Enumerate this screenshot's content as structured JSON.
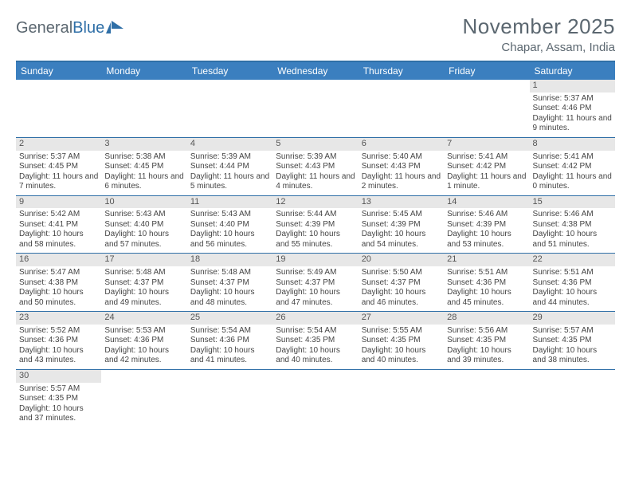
{
  "logo": {
    "text1": "General",
    "text2": "Blue"
  },
  "title": "November 2025",
  "location": "Chapar, Assam, India",
  "colors": {
    "header_bg": "#3b7fbf",
    "rule": "#2f6fa7",
    "daynum_bg": "#e7e7e7",
    "text_muted": "#5b6770"
  },
  "days_of_week": [
    "Sunday",
    "Monday",
    "Tuesday",
    "Wednesday",
    "Thursday",
    "Friday",
    "Saturday"
  ],
  "weeks": [
    [
      {
        "n": "",
        "sr": "",
        "ss": "",
        "dl": ""
      },
      {
        "n": "",
        "sr": "",
        "ss": "",
        "dl": ""
      },
      {
        "n": "",
        "sr": "",
        "ss": "",
        "dl": ""
      },
      {
        "n": "",
        "sr": "",
        "ss": "",
        "dl": ""
      },
      {
        "n": "",
        "sr": "",
        "ss": "",
        "dl": ""
      },
      {
        "n": "",
        "sr": "",
        "ss": "",
        "dl": ""
      },
      {
        "n": "1",
        "sr": "Sunrise: 5:37 AM",
        "ss": "Sunset: 4:46 PM",
        "dl": "Daylight: 11 hours and 9 minutes."
      }
    ],
    [
      {
        "n": "2",
        "sr": "Sunrise: 5:37 AM",
        "ss": "Sunset: 4:45 PM",
        "dl": "Daylight: 11 hours and 7 minutes."
      },
      {
        "n": "3",
        "sr": "Sunrise: 5:38 AM",
        "ss": "Sunset: 4:45 PM",
        "dl": "Daylight: 11 hours and 6 minutes."
      },
      {
        "n": "4",
        "sr": "Sunrise: 5:39 AM",
        "ss": "Sunset: 4:44 PM",
        "dl": "Daylight: 11 hours and 5 minutes."
      },
      {
        "n": "5",
        "sr": "Sunrise: 5:39 AM",
        "ss": "Sunset: 4:43 PM",
        "dl": "Daylight: 11 hours and 4 minutes."
      },
      {
        "n": "6",
        "sr": "Sunrise: 5:40 AM",
        "ss": "Sunset: 4:43 PM",
        "dl": "Daylight: 11 hours and 2 minutes."
      },
      {
        "n": "7",
        "sr": "Sunrise: 5:41 AM",
        "ss": "Sunset: 4:42 PM",
        "dl": "Daylight: 11 hours and 1 minute."
      },
      {
        "n": "8",
        "sr": "Sunrise: 5:41 AM",
        "ss": "Sunset: 4:42 PM",
        "dl": "Daylight: 11 hours and 0 minutes."
      }
    ],
    [
      {
        "n": "9",
        "sr": "Sunrise: 5:42 AM",
        "ss": "Sunset: 4:41 PM",
        "dl": "Daylight: 10 hours and 58 minutes."
      },
      {
        "n": "10",
        "sr": "Sunrise: 5:43 AM",
        "ss": "Sunset: 4:40 PM",
        "dl": "Daylight: 10 hours and 57 minutes."
      },
      {
        "n": "11",
        "sr": "Sunrise: 5:43 AM",
        "ss": "Sunset: 4:40 PM",
        "dl": "Daylight: 10 hours and 56 minutes."
      },
      {
        "n": "12",
        "sr": "Sunrise: 5:44 AM",
        "ss": "Sunset: 4:39 PM",
        "dl": "Daylight: 10 hours and 55 minutes."
      },
      {
        "n": "13",
        "sr": "Sunrise: 5:45 AM",
        "ss": "Sunset: 4:39 PM",
        "dl": "Daylight: 10 hours and 54 minutes."
      },
      {
        "n": "14",
        "sr": "Sunrise: 5:46 AM",
        "ss": "Sunset: 4:39 PM",
        "dl": "Daylight: 10 hours and 53 minutes."
      },
      {
        "n": "15",
        "sr": "Sunrise: 5:46 AM",
        "ss": "Sunset: 4:38 PM",
        "dl": "Daylight: 10 hours and 51 minutes."
      }
    ],
    [
      {
        "n": "16",
        "sr": "Sunrise: 5:47 AM",
        "ss": "Sunset: 4:38 PM",
        "dl": "Daylight: 10 hours and 50 minutes."
      },
      {
        "n": "17",
        "sr": "Sunrise: 5:48 AM",
        "ss": "Sunset: 4:37 PM",
        "dl": "Daylight: 10 hours and 49 minutes."
      },
      {
        "n": "18",
        "sr": "Sunrise: 5:48 AM",
        "ss": "Sunset: 4:37 PM",
        "dl": "Daylight: 10 hours and 48 minutes."
      },
      {
        "n": "19",
        "sr": "Sunrise: 5:49 AM",
        "ss": "Sunset: 4:37 PM",
        "dl": "Daylight: 10 hours and 47 minutes."
      },
      {
        "n": "20",
        "sr": "Sunrise: 5:50 AM",
        "ss": "Sunset: 4:37 PM",
        "dl": "Daylight: 10 hours and 46 minutes."
      },
      {
        "n": "21",
        "sr": "Sunrise: 5:51 AM",
        "ss": "Sunset: 4:36 PM",
        "dl": "Daylight: 10 hours and 45 minutes."
      },
      {
        "n": "22",
        "sr": "Sunrise: 5:51 AM",
        "ss": "Sunset: 4:36 PM",
        "dl": "Daylight: 10 hours and 44 minutes."
      }
    ],
    [
      {
        "n": "23",
        "sr": "Sunrise: 5:52 AM",
        "ss": "Sunset: 4:36 PM",
        "dl": "Daylight: 10 hours and 43 minutes."
      },
      {
        "n": "24",
        "sr": "Sunrise: 5:53 AM",
        "ss": "Sunset: 4:36 PM",
        "dl": "Daylight: 10 hours and 42 minutes."
      },
      {
        "n": "25",
        "sr": "Sunrise: 5:54 AM",
        "ss": "Sunset: 4:36 PM",
        "dl": "Daylight: 10 hours and 41 minutes."
      },
      {
        "n": "26",
        "sr": "Sunrise: 5:54 AM",
        "ss": "Sunset: 4:35 PM",
        "dl": "Daylight: 10 hours and 40 minutes."
      },
      {
        "n": "27",
        "sr": "Sunrise: 5:55 AM",
        "ss": "Sunset: 4:35 PM",
        "dl": "Daylight: 10 hours and 40 minutes."
      },
      {
        "n": "28",
        "sr": "Sunrise: 5:56 AM",
        "ss": "Sunset: 4:35 PM",
        "dl": "Daylight: 10 hours and 39 minutes."
      },
      {
        "n": "29",
        "sr": "Sunrise: 5:57 AM",
        "ss": "Sunset: 4:35 PM",
        "dl": "Daylight: 10 hours and 38 minutes."
      }
    ],
    [
      {
        "n": "30",
        "sr": "Sunrise: 5:57 AM",
        "ss": "Sunset: 4:35 PM",
        "dl": "Daylight: 10 hours and 37 minutes."
      },
      {
        "n": "",
        "sr": "",
        "ss": "",
        "dl": ""
      },
      {
        "n": "",
        "sr": "",
        "ss": "",
        "dl": ""
      },
      {
        "n": "",
        "sr": "",
        "ss": "",
        "dl": ""
      },
      {
        "n": "",
        "sr": "",
        "ss": "",
        "dl": ""
      },
      {
        "n": "",
        "sr": "",
        "ss": "",
        "dl": ""
      },
      {
        "n": "",
        "sr": "",
        "ss": "",
        "dl": ""
      }
    ]
  ]
}
